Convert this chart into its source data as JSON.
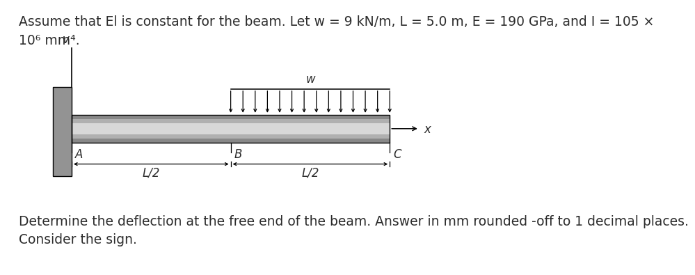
{
  "title_line1": "Assume that El is constant for the beam. Let w = 9 kN/m, L = 5.0 m, E = 190 GPa, and I = 105 ×",
  "title_line2": "10⁶ mm⁴.",
  "bottom_line1": "Determine the deflection at the free end of the beam. Answer in mm rounded -off to 1 decimal places.",
  "bottom_line2": "Consider the sign.",
  "label_v": "v",
  "label_x": "x",
  "label_w": "w",
  "label_A": "A",
  "label_B": "B",
  "label_C": "C",
  "label_L2_left": "L/2",
  "label_L2_right": "L/2",
  "wall_color": "#939393",
  "text_color": "#2c2c2c",
  "fig_bg": "#ffffff",
  "fontsize_main": 13.5,
  "fontsize_labels": 12,
  "fontsize_axis": 12
}
